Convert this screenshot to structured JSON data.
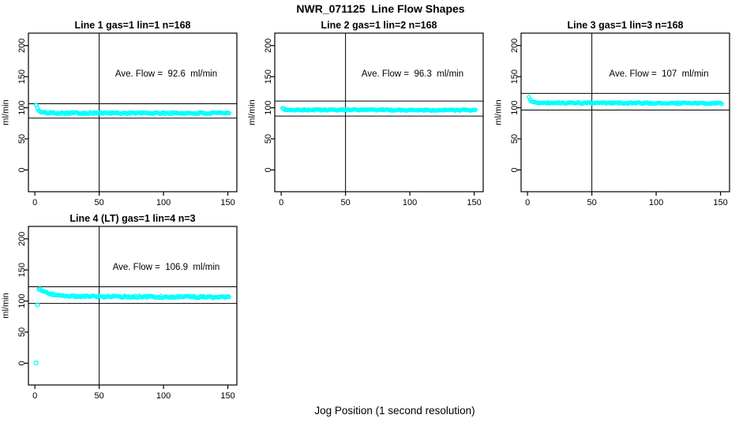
{
  "title": "NWR_071125  Line Flow Shapes",
  "xlabel": "Jog Position (1 second resolution)",
  "colors": {
    "marker": "#00FFFF",
    "axis": "#000000",
    "background": "#FFFFFF"
  },
  "axes": {
    "x_ticks": [
      0,
      50,
      100,
      150
    ],
    "y_ticks": [
      0,
      50,
      100,
      150,
      200
    ],
    "xlim": [
      -5,
      157
    ],
    "ylim": [
      -35,
      220
    ],
    "tick_length": 5
  },
  "chart_data": [
    {
      "type": "scatter",
      "title": "Line 1 gas=1 lin=1 n=168",
      "annotation": "Ave. Flow =  92.6  ml/min",
      "ave_flow_ml_min": 92.6,
      "n": 168,
      "ylabel": "ml/min",
      "vline_x": 50,
      "ref_upper": 106.5,
      "ref_lower": 83.3,
      "series": {
        "x_start": 1,
        "x_end": 151,
        "jitter": 1.4,
        "seed": 101,
        "anchors": [
          [
            1,
            105.5
          ],
          [
            2,
            99.0
          ],
          [
            3,
            95.5
          ],
          [
            4,
            93.5
          ],
          [
            6,
            92.5
          ],
          [
            10,
            91.8
          ],
          [
            60,
            91.5
          ],
          [
            151,
            91.2
          ]
        ],
        "outliers": []
      }
    },
    {
      "type": "scatter",
      "title": "Line 2 gas=1 lin=2 n=168",
      "annotation": "Ave. Flow =  96.3  ml/min",
      "ave_flow_ml_min": 96.3,
      "n": 168,
      "ylabel": "ml/min",
      "vline_x": 50,
      "ref_upper": 110.7,
      "ref_lower": 86.7,
      "series": {
        "x_start": 1,
        "x_end": 151,
        "jitter": 1.0,
        "seed": 202,
        "anchors": [
          [
            1,
            100.0
          ],
          [
            2,
            98.0
          ],
          [
            3,
            97.0
          ],
          [
            5,
            96.6
          ],
          [
            151,
            96.2
          ]
        ],
        "outliers": []
      }
    },
    {
      "type": "scatter",
      "title": "Line 3 gas=1 lin=3 n=168",
      "annotation": "Ave. Flow =  107  ml/min",
      "ave_flow_ml_min": 107,
      "n": 168,
      "ylabel": "ml/min",
      "vline_x": 50,
      "ref_upper": 123.1,
      "ref_lower": 96.3,
      "series": {
        "x_start": 1,
        "x_end": 151,
        "jitter": 1.1,
        "seed": 303,
        "anchors": [
          [
            1,
            116.0
          ],
          [
            2,
            112.5
          ],
          [
            3,
            110.5
          ],
          [
            5,
            109.0
          ],
          [
            10,
            107.8
          ],
          [
            151,
            107.2
          ]
        ],
        "outliers": []
      }
    },
    {
      "type": "scatter",
      "title": "Line 4 (LT) gas=1 lin=4 n=3",
      "annotation": "Ave. Flow =  106.9  ml/min",
      "ave_flow_ml_min": 106.9,
      "n": 3,
      "ylabel": "ml/min",
      "vline_x": 50,
      "ref_upper": 122.9,
      "ref_lower": 96.2,
      "series": {
        "x_start": 3,
        "x_end": 151,
        "jitter": 1.5,
        "seed": 404,
        "anchors": [
          [
            3,
            119.0
          ],
          [
            5,
            118.0
          ],
          [
            8,
            114.5
          ],
          [
            12,
            111.5
          ],
          [
            18,
            109.0
          ],
          [
            25,
            108.0
          ],
          [
            40,
            107.2
          ],
          [
            80,
            106.8
          ],
          [
            151,
            106.3
          ]
        ],
        "outliers": [
          [
            1,
            0.5
          ],
          [
            2,
            94.0
          ]
        ]
      }
    }
  ]
}
